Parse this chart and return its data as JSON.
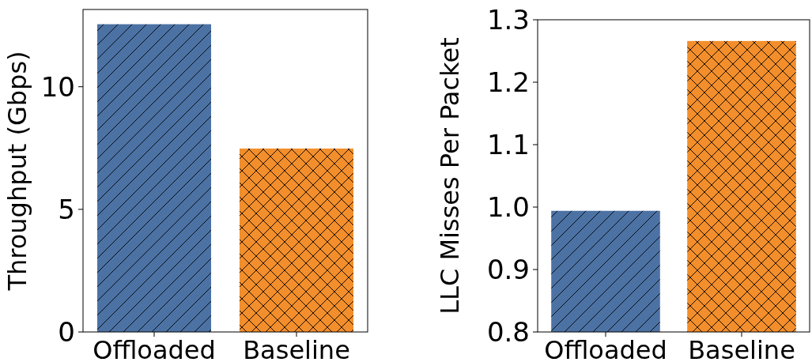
{
  "chart_data": [
    {
      "type": "bar",
      "ylabel": "Throughput (Gbps)",
      "categories": [
        "Offloaded",
        "Baseline"
      ],
      "values": [
        12.55,
        7.48
      ],
      "colors": [
        "#4c72a4",
        "#f28e2b"
      ],
      "ylim": [
        0,
        13.15
      ],
      "yticks": [
        0,
        5,
        10
      ],
      "grid": false
    },
    {
      "type": "bar",
      "ylabel": "LLC Misses Per Packet",
      "categories": [
        "Offloaded",
        "Baseline"
      ],
      "values": [
        0.994,
        1.266
      ],
      "colors": [
        "#4c72a4",
        "#f28e2b"
      ],
      "ylim": [
        0.8,
        1.3
      ],
      "yticks": [
        0.8,
        0.9,
        {
          "value": 1.0,
          "label": "1.0"
        },
        1.1,
        1.2,
        1.3
      ],
      "grid": false
    }
  ]
}
